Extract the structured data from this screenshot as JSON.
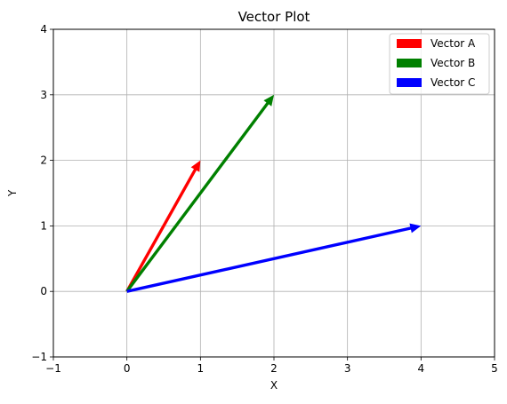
{
  "chart_data": {
    "type": "vector",
    "title": "Vector Plot",
    "xlabel": "X",
    "ylabel": "Y",
    "xlim": [
      -1,
      5
    ],
    "ylim": [
      -1,
      4
    ],
    "xticks": [
      -1,
      0,
      1,
      2,
      3,
      4,
      5
    ],
    "yticks": [
      -1,
      0,
      1,
      2,
      3,
      4
    ],
    "xtick_labels": [
      "−1",
      "0",
      "1",
      "2",
      "3",
      "4",
      "5"
    ],
    "ytick_labels": [
      "−1",
      "0",
      "1",
      "2",
      "3",
      "4"
    ],
    "grid": true,
    "legend_position": "top-right",
    "series": [
      {
        "name": "Vector A",
        "origin": [
          0,
          0
        ],
        "vector": [
          1,
          2
        ],
        "color": "#ff0000"
      },
      {
        "name": "Vector B",
        "origin": [
          0,
          0
        ],
        "vector": [
          2,
          3
        ],
        "color": "#008000"
      },
      {
        "name": "Vector C",
        "origin": [
          0,
          0
        ],
        "vector": [
          4,
          1
        ],
        "color": "#0000ff"
      }
    ]
  }
}
